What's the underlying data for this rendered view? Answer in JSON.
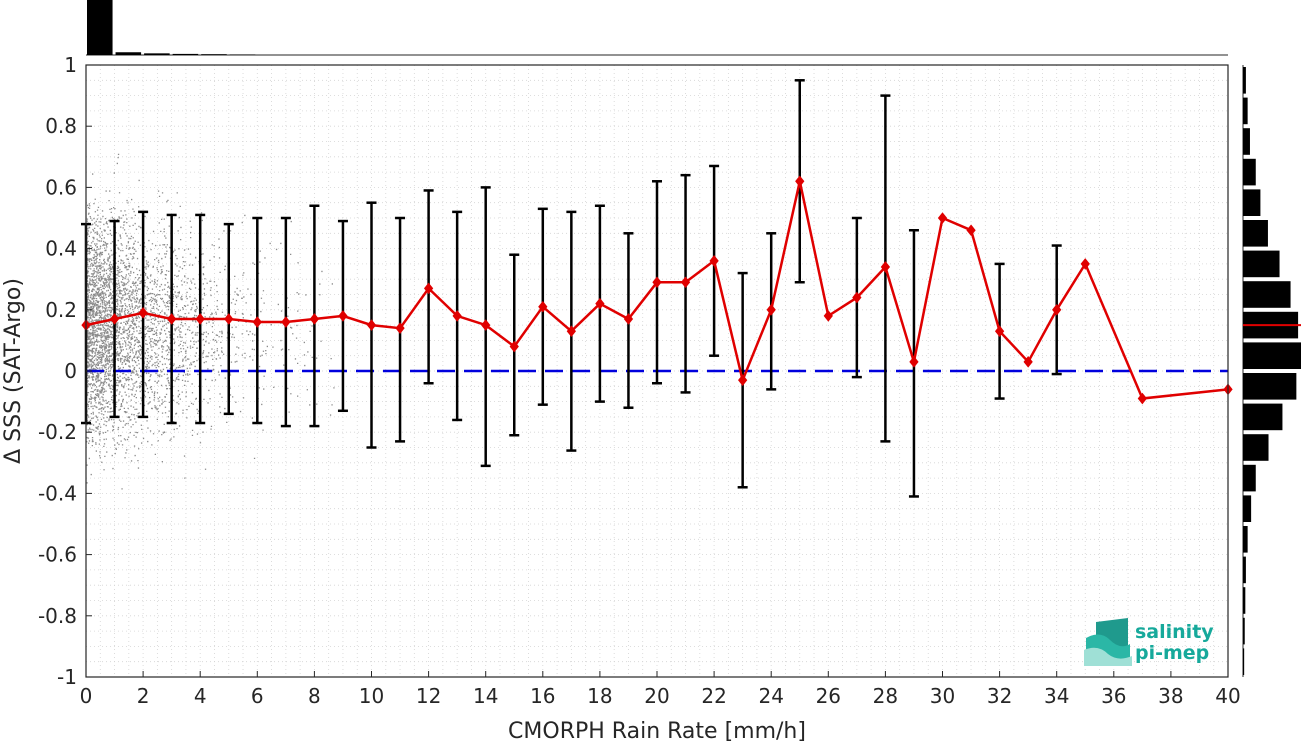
{
  "chart_data": {
    "type": "line",
    "xlabel": "CMORPH Rain Rate [mm/h]",
    "ylabel": "Δ SSS (SAT-Argo)",
    "xlim": [
      0,
      40
    ],
    "ylim": [
      -1,
      1
    ],
    "xticks": [
      "0",
      "2",
      "4",
      "6",
      "8",
      "10",
      "12",
      "14",
      "16",
      "18",
      "20",
      "22",
      "24",
      "26",
      "28",
      "30",
      "32",
      "34",
      "36",
      "38",
      "40"
    ],
    "yticks": [
      "1",
      "0.8",
      "0.6",
      "0.4",
      "0.2",
      "0",
      "-0.2",
      "-0.4",
      "-0.6",
      "-0.8",
      "-1"
    ],
    "grid": true,
    "zero_line": 0,
    "colors": {
      "mean_line": "#e00000",
      "error_bars": "#000000",
      "zero_line": "#0000dd",
      "scatter": "#8c8c8c"
    },
    "series": [
      {
        "x": [
          0,
          1,
          2,
          3,
          4,
          5,
          6,
          7,
          8,
          9,
          10,
          11,
          12,
          13,
          14,
          15,
          16,
          17,
          18,
          19,
          20,
          21,
          22,
          23,
          24,
          25,
          26,
          27,
          28,
          29,
          30,
          31,
          32,
          33,
          34,
          35,
          37,
          40
        ],
        "y": [
          0.15,
          0.17,
          0.19,
          0.17,
          0.17,
          0.17,
          0.16,
          0.16,
          0.17,
          0.18,
          0.15,
          0.14,
          0.27,
          0.18,
          0.15,
          0.08,
          0.21,
          0.13,
          0.22,
          0.17,
          0.29,
          0.29,
          0.36,
          -0.03,
          0.2,
          0.62,
          0.18,
          0.24,
          0.34,
          0.03,
          0.5,
          0.46,
          0.13,
          0.03,
          0.2,
          0.35,
          -0.09,
          -0.06
        ],
        "ylow": [
          -0.17,
          -0.15,
          -0.15,
          -0.17,
          -0.17,
          -0.14,
          -0.17,
          -0.18,
          -0.18,
          -0.13,
          -0.25,
          -0.23,
          -0.04,
          -0.16,
          -0.31,
          -0.21,
          -0.11,
          -0.26,
          -0.1,
          -0.12,
          -0.04,
          -0.07,
          0.05,
          -0.38,
          -0.06,
          0.29,
          null,
          -0.02,
          -0.23,
          -0.41,
          null,
          null,
          -0.09,
          null,
          -0.01,
          null,
          null,
          null
        ],
        "yhigh": [
          0.48,
          0.49,
          0.52,
          0.51,
          0.51,
          0.48,
          0.5,
          0.5,
          0.54,
          0.49,
          0.55,
          0.5,
          0.59,
          0.52,
          0.6,
          0.38,
          0.53,
          0.52,
          0.54,
          0.45,
          0.62,
          0.64,
          0.67,
          0.32,
          0.45,
          0.95,
          null,
          0.5,
          0.9,
          0.46,
          null,
          null,
          0.35,
          null,
          0.41,
          null,
          null,
          null
        ]
      }
    ],
    "top_histogram": {
      "bins": [
        0,
        1,
        2,
        3,
        4,
        5
      ],
      "counts": [
        1.0,
        0.05,
        0.03,
        0.02,
        0.015,
        0.01
      ]
    },
    "right_histogram": {
      "bin_centers": [
        0.95,
        0.85,
        0.75,
        0.65,
        0.55,
        0.45,
        0.35,
        0.25,
        0.15,
        0.05,
        -0.05,
        -0.15,
        -0.25,
        -0.35,
        -0.45,
        -0.55,
        -0.65,
        -0.75,
        -0.85,
        -0.95
      ],
      "counts": [
        0.05,
        0.08,
        0.12,
        0.22,
        0.3,
        0.43,
        0.63,
        0.82,
        0.95,
        1.0,
        0.92,
        0.68,
        0.44,
        0.22,
        0.14,
        0.08,
        0.05,
        0.04,
        0.03,
        0.02
      ],
      "mean": 0.15
    }
  },
  "logo": {
    "line1": "salinity",
    "line2": "pi-mep",
    "color": "#16a99b"
  }
}
